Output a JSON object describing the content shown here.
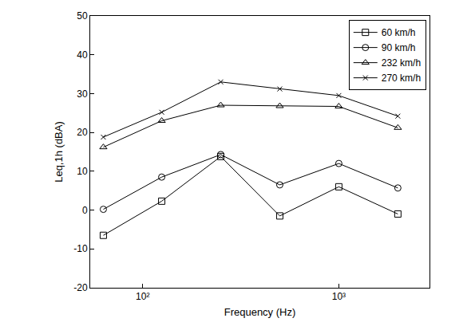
{
  "chart_data": {
    "type": "line",
    "x_label": "Frequency (Hz)",
    "y_label": "Leq,1h (dBA)",
    "x": [
      63,
      125,
      250,
      500,
      1000,
      2000
    ],
    "series": [
      {
        "name": "60 km/h",
        "color": "#000000",
        "marker": "square",
        "line_style": "solid",
        "values": [
          -6.5,
          2.3,
          13.8,
          -1.5,
          6.0,
          -1.0
        ]
      },
      {
        "name": "90 km/h",
        "color": "#000000",
        "marker": "circle",
        "line_style": "solid",
        "values": [
          0.2,
          8.5,
          14.3,
          6.5,
          12.0,
          5.7
        ]
      },
      {
        "name": "232 km/h",
        "color": "#000000",
        "marker": "triangle",
        "line_style": "solid",
        "values": [
          16.2,
          23.0,
          27.0,
          26.8,
          26.7,
          21.2
        ]
      },
      {
        "name": "270 km/h",
        "color": "#000000",
        "marker": "x",
        "line_style": "solid",
        "values": [
          18.8,
          25.2,
          33.0,
          31.2,
          29.5,
          24.2
        ]
      }
    ],
    "log": "x",
    "xlim": [
      54,
      2900
    ],
    "xticks": [
      {
        "value": 100,
        "label": "10²"
      },
      {
        "value": 1000,
        "label": "10³"
      }
    ],
    "ylim": [
      -20,
      50
    ],
    "yticks": [
      -20,
      -10,
      0,
      10,
      20,
      30,
      40,
      50
    ],
    "grid": false,
    "legend": "top right"
  }
}
